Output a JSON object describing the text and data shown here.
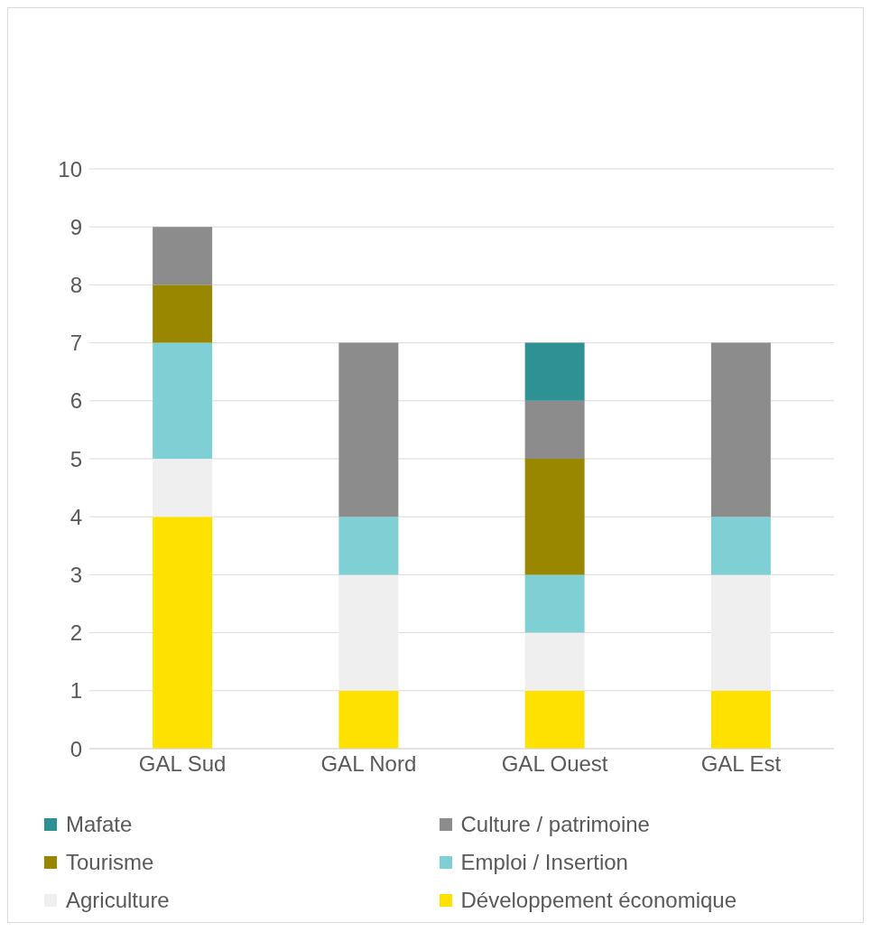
{
  "chart_data": {
    "type": "bar",
    "stacked": true,
    "categories": [
      "GAL Sud",
      "GAL Nord",
      "GAL Ouest",
      "GAL Est"
    ],
    "series": [
      {
        "name": "Développement économique",
        "color": "#ffe100",
        "values": [
          4,
          1,
          1,
          1
        ]
      },
      {
        "name": "Agriculture",
        "color": "#efefef",
        "values": [
          1,
          2,
          1,
          2
        ]
      },
      {
        "name": "Emploi / Insertion",
        "color": "#7fd0d4",
        "values": [
          2,
          1,
          1,
          1
        ]
      },
      {
        "name": "Tourisme",
        "color": "#9a8700",
        "values": [
          1,
          0,
          2,
          0
        ]
      },
      {
        "name": "Culture / patrimoine",
        "color": "#8c8c8c",
        "values": [
          1,
          3,
          1,
          3
        ]
      },
      {
        "name": "Mafate",
        "color": "#2e9294",
        "values": [
          0,
          0,
          1,
          0
        ]
      }
    ],
    "ylim": [
      0,
      10
    ],
    "yticks": [
      0,
      1,
      2,
      3,
      4,
      5,
      6,
      7,
      8,
      9,
      10
    ],
    "grid": "y",
    "legend": "bottom"
  }
}
